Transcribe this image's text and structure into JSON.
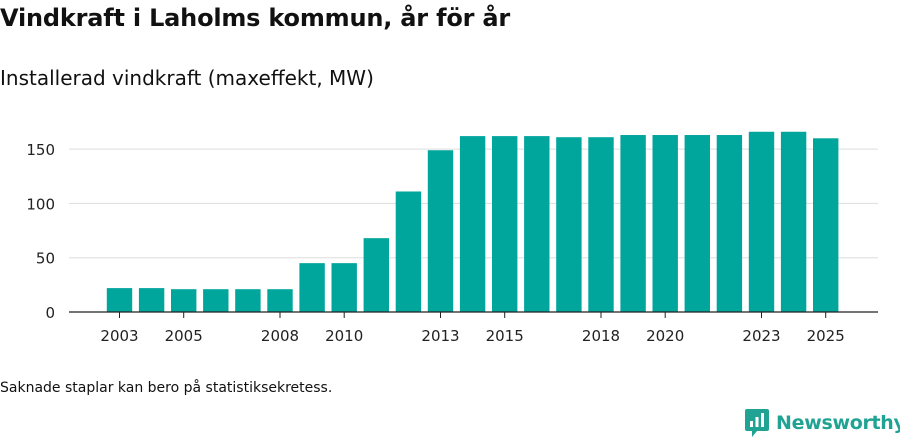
{
  "header": {
    "title": "Vindkraft i Laholms kommun, år för år",
    "subtitle": "Installerad vindkraft (maxeffekt, MW)"
  },
  "footnote": "Saknade staplar kan bero på statistiksekretess.",
  "brand": {
    "name": "Newsworthy",
    "icon": "newsworthy-logo-icon",
    "color": "#20a393"
  },
  "chart_data": {
    "type": "bar",
    "title": "Vindkraft i Laholms kommun, år för år",
    "subtitle": "Installerad vindkraft (maxeffekt, MW)",
    "xlabel": "",
    "ylabel": "Installerad vindkraft (maxeffekt, MW)",
    "ylim": [
      0,
      175
    ],
    "yticks": [
      0,
      50,
      100,
      150
    ],
    "xticks": [
      "2003",
      "2005",
      "2008",
      "2010",
      "2013",
      "2015",
      "2018",
      "2020",
      "2023",
      "2025"
    ],
    "grid": true,
    "bar_color": "#00a59c",
    "categories": [
      "2003",
      "2004",
      "2005",
      "2006",
      "2007",
      "2008",
      "2009",
      "2010",
      "2011",
      "2012",
      "2013",
      "2014",
      "2015",
      "2016",
      "2017",
      "2018",
      "2019",
      "2020",
      "2021",
      "2022",
      "2023",
      "2024",
      "2025"
    ],
    "values": [
      22,
      22,
      21,
      21,
      21,
      21,
      45,
      45,
      68,
      111,
      149,
      162,
      162,
      162,
      161,
      161,
      163,
      163,
      163,
      163,
      166,
      166,
      160
    ]
  }
}
